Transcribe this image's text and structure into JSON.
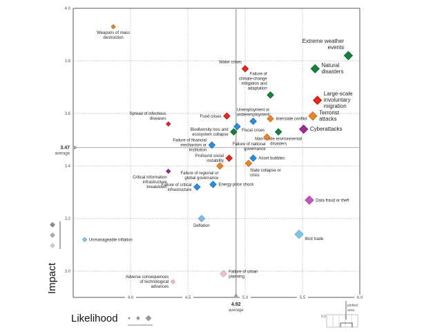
{
  "chart_data": {
    "type": "scatter",
    "title": "",
    "xlabel": "Likelihood",
    "ylabel": "Impact",
    "xlim": [
      3.5,
      6.0
    ],
    "ylim": [
      2.9,
      4.0
    ],
    "x_ticks": [
      "4.0",
      "4.5",
      "5.0",
      "5.5",
      "6.0"
    ],
    "x_tick_values": [
      4.0,
      4.5,
      5.0,
      5.5,
      6.0
    ],
    "y_ticks": [
      "4.0",
      "3.8",
      "3.6",
      "3.4",
      "3.2",
      "3.0"
    ],
    "y_tick_values": [
      4.0,
      3.8,
      3.6,
      3.4,
      3.2,
      3.0
    ],
    "grid": true,
    "x_average": {
      "value": 4.92,
      "label": "4.92",
      "sub": "average"
    },
    "y_average": {
      "value": 3.47,
      "label": "3.47",
      "sub": "average"
    },
    "legend": {
      "size_legend": "bottom-left",
      "inset_label": "plotted area",
      "inset_tick": "5.0",
      "inset_placement": "bottom-right"
    },
    "category_colors": {
      "economic": "#2a8fd8",
      "environmental": "#17803f",
      "geopolitical": "#e8842a",
      "societal": "#e0281e",
      "technological": "#9b2b96"
    },
    "points": [
      {
        "label": "Weapons of mass destruction",
        "x": 3.85,
        "y": 3.93,
        "color": "#e8842a",
        "size": 1,
        "anchor": "below"
      },
      {
        "label": "Extreme weather events",
        "x": 5.9,
        "y": 3.82,
        "color": "#17803f",
        "size": 3,
        "anchor": "above-left",
        "big": true
      },
      {
        "label": "Natural disasters",
        "x": 5.61,
        "y": 3.77,
        "color": "#17803f",
        "size": 3,
        "anchor": "right",
        "big": true
      },
      {
        "label": "Water crises",
        "x": 5.0,
        "y": 3.77,
        "color": "#e0281e",
        "size": 2,
        "anchor": "above-left"
      },
      {
        "label": "Failure of climate-change mitigation and adaptation",
        "x": 5.22,
        "y": 3.67,
        "color": "#17803f",
        "size": 2,
        "anchor": "above-left"
      },
      {
        "label": "Large-scale involuntary migration",
        "x": 5.63,
        "y": 3.65,
        "color": "#e0281e",
        "size": 3,
        "anchor": "right",
        "big": true
      },
      {
        "label": "Food crises",
        "x": 4.84,
        "y": 3.59,
        "color": "#e0281e",
        "size": 2,
        "anchor": "left"
      },
      {
        "label": "Unemployment or underemployment",
        "x": 5.07,
        "y": 3.57,
        "color": "#2a8fd8",
        "size": 2,
        "anchor": "above"
      },
      {
        "label": "Interstate conflict",
        "x": 5.22,
        "y": 3.58,
        "color": "#e8842a",
        "size": 2,
        "anchor": "right"
      },
      {
        "label": "Terrorist attacks",
        "x": 5.59,
        "y": 3.59,
        "color": "#e8842a",
        "size": 3,
        "anchor": "right",
        "big": true
      },
      {
        "label": "Spread of infectious diseases",
        "x": 4.33,
        "y": 3.56,
        "color": "#e0281e",
        "size": 1,
        "anchor": "above-left"
      },
      {
        "label": "Fiscal crises",
        "x": 4.93,
        "y": 3.55,
        "color": "#2a8fd8",
        "size": 2,
        "anchor": "right-below"
      },
      {
        "label": "Biodiversity loss and ecosystem collapse",
        "x": 4.9,
        "y": 3.53,
        "color": "#17803f",
        "size": 2,
        "anchor": "left"
      },
      {
        "label": "Cyberattacks",
        "x": 5.51,
        "y": 3.54,
        "color": "#9b2b96",
        "size": 3,
        "anchor": "right",
        "big": true
      },
      {
        "label": "Man-made environmental disasters",
        "x": 5.29,
        "y": 3.53,
        "color": "#17803f",
        "size": 2,
        "anchor": "below"
      },
      {
        "label": "Failure of national governance",
        "x": 5.19,
        "y": 3.51,
        "color": "#e8842a",
        "size": 2,
        "anchor": "below-left"
      },
      {
        "label": "Failure of financial mechanism or institution",
        "x": 4.71,
        "y": 3.48,
        "color": "#2a8fd8",
        "size": 2,
        "anchor": "left"
      },
      {
        "label": "Profound social instability",
        "x": 4.86,
        "y": 3.43,
        "color": "#e0281e",
        "size": 2,
        "anchor": "left"
      },
      {
        "label": "Asset bubbles",
        "x": 5.07,
        "y": 3.43,
        "color": "#2a8fd8",
        "size": 2,
        "anchor": "right"
      },
      {
        "label": "State collapse or crisis",
        "x": 5.03,
        "y": 3.41,
        "color": "#e8842a",
        "size": 2,
        "anchor": "below-right"
      },
      {
        "label": "Failure of regional or global governance",
        "x": 4.78,
        "y": 3.4,
        "color": "#e8842a",
        "size": 2,
        "anchor": "below-left"
      },
      {
        "label": "Critical information infrastructure breakdown",
        "x": 4.33,
        "y": 3.38,
        "color": "#9b2b96",
        "size": 1,
        "anchor": "below-left"
      },
      {
        "label": "Energy price shock",
        "x": 4.72,
        "y": 3.33,
        "color": "#2a8fd8",
        "size": 2,
        "anchor": "right"
      },
      {
        "label": "Failure of critical infrastructure",
        "x": 4.58,
        "y": 3.32,
        "color": "#2a8fd8",
        "size": 2,
        "anchor": "left"
      },
      {
        "label": "Data fraud or theft",
        "x": 5.56,
        "y": 3.27,
        "color": "#c058b8",
        "size": 3,
        "anchor": "right"
      },
      {
        "label": "Deflation",
        "x": 4.62,
        "y": 3.2,
        "color": "#7dbfe8",
        "size": 2,
        "anchor": "below"
      },
      {
        "label": "Illicit trade",
        "x": 5.47,
        "y": 3.14,
        "color": "#7dc6e8",
        "size": 3,
        "anchor": "right-below"
      },
      {
        "label": "Unmanageable inflation",
        "x": 3.6,
        "y": 3.12,
        "color": "#7dc6e8",
        "size": 1,
        "anchor": "right"
      },
      {
        "label": "Failure of urban planning",
        "x": 4.81,
        "y": 2.99,
        "color": "#f4c4c4",
        "size": 2,
        "anchor": "right"
      },
      {
        "label": "Adverse consequences of technological advances",
        "x": 4.37,
        "y": 2.96,
        "color": "#f0b8e0",
        "size": 1,
        "anchor": "left"
      }
    ]
  }
}
